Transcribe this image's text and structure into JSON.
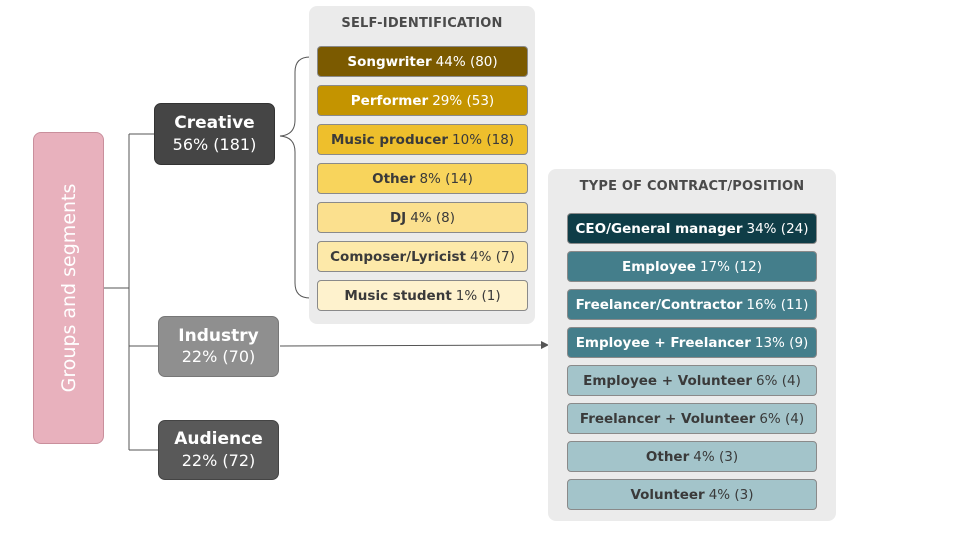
{
  "root": {
    "label": "Groups and segments"
  },
  "segments": {
    "creative": {
      "name": "Creative",
      "value": "56%  (181)"
    },
    "industry": {
      "name": "Industry",
      "value": "22% (70)"
    },
    "audience": {
      "name": "Audience",
      "value": "22% (72)"
    }
  },
  "self_identification": {
    "title": "SELF-IDENTIFICATION",
    "items": [
      {
        "name": "Songwriter",
        "value": "44% (80)",
        "color": "#7b5a00",
        "text_color": "#ffffff"
      },
      {
        "name": "Performer",
        "value": "29% (53)",
        "color": "#c49400",
        "text_color": "#ffffff"
      },
      {
        "name": "Music producer",
        "value": "10% (18)",
        "color": "#eebf2c",
        "text_color": "#3a3a3a"
      },
      {
        "name": "Other",
        "value": "8% (14)",
        "color": "#f8d45c",
        "text_color": "#3a3a3a"
      },
      {
        "name": "DJ",
        "value": "4% (8)",
        "color": "#fbe08e",
        "text_color": "#3a3a3a"
      },
      {
        "name": "Composer/Lyricist",
        "value": "4% (7)",
        "color": "#fde9a9",
        "text_color": "#3a3a3a"
      },
      {
        "name": "Music student",
        "value": "1% (1)",
        "color": "#fef2cd",
        "text_color": "#3a3a3a"
      }
    ]
  },
  "contract_position": {
    "title": "TYPE OF CONTRACT/POSITION",
    "items": [
      {
        "name": "CEO/General manager",
        "value": "34% (24)",
        "color": "#0f3d47",
        "text_color": "#ffffff"
      },
      {
        "name": "Employee",
        "value": "17% (12)",
        "color": "#447e8b",
        "text_color": "#ffffff"
      },
      {
        "name": "Freelancer/Contractor",
        "value": "16% (11)",
        "color": "#447e8b",
        "text_color": "#ffffff"
      },
      {
        "name": "Employee + Freelancer",
        "value": "13% (9)",
        "color": "#447e8b",
        "text_color": "#ffffff"
      },
      {
        "name": "Employee + Volunteer",
        "value": "6% (4)",
        "color": "#a3c4ca",
        "text_color": "#3a3a3a"
      },
      {
        "name": "Freelancer + Volunteer",
        "value": "6% (4)",
        "color": "#a3c4ca",
        "text_color": "#3a3a3a"
      },
      {
        "name": "Other",
        "value": "4% (3)",
        "color": "#a3c4ca",
        "text_color": "#3a3a3a"
      },
      {
        "name": "Volunteer",
        "value": "4% (3)",
        "color": "#a3c4ca",
        "text_color": "#3a3a3a"
      }
    ]
  }
}
